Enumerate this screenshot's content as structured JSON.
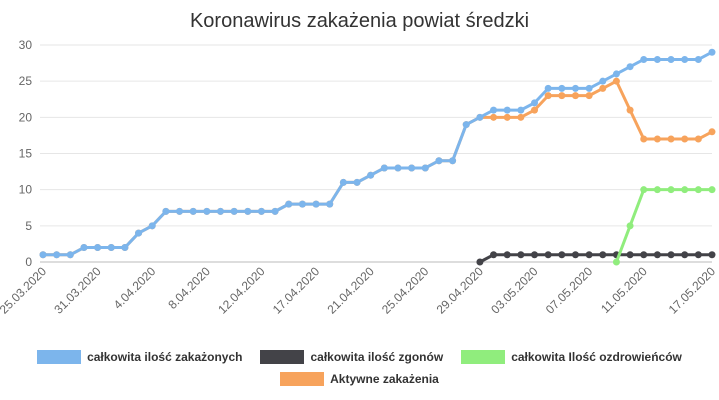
{
  "chart_data": {
    "type": "line",
    "title": "Koronawirus zakażenia powiat średzki",
    "xlabel": "",
    "ylabel": "",
    "ylim": [
      0,
      30
    ],
    "yticks": [
      0,
      5,
      10,
      15,
      20,
      25,
      30
    ],
    "grid": true,
    "legend_position": "bottom",
    "categories": [
      "25.03.2020",
      "",
      "",
      "",
      "31.03.2020",
      "",
      "",
      "",
      "4.04.2020",
      "",
      "",
      "",
      "8.04.2020",
      "",
      "",
      "",
      "12.04.2020",
      "",
      "",
      "",
      "17.04.2020",
      "",
      "",
      "",
      "21.04.2020",
      "",
      "",
      "",
      "25.04.2020",
      "",
      "",
      "",
      "29.04.2020",
      "",
      "",
      "",
      "03.05.2020",
      "",
      "",
      "",
      "07.05.2020",
      "",
      "",
      "",
      "11.05.2020",
      "",
      "",
      "",
      "",
      "17.05.2020"
    ],
    "series": [
      {
        "name": "całkowita ilość zakażonych",
        "color": "#7cb5ec",
        "values": [
          1,
          1,
          1,
          2,
          2,
          2,
          2,
          4,
          5,
          7,
          7,
          7,
          7,
          7,
          7,
          7,
          7,
          7,
          8,
          8,
          8,
          8,
          11,
          11,
          12,
          13,
          13,
          13,
          13,
          14,
          14,
          19,
          20,
          21,
          21,
          21,
          22,
          24,
          24,
          24,
          24,
          25,
          26,
          27,
          28,
          28,
          28,
          28,
          28,
          29
        ]
      },
      {
        "name": "całkowita ilość zgonów",
        "color": "#434348",
        "values": [
          null,
          null,
          null,
          null,
          null,
          null,
          null,
          null,
          null,
          null,
          null,
          null,
          null,
          null,
          null,
          null,
          null,
          null,
          null,
          null,
          null,
          null,
          null,
          null,
          null,
          null,
          null,
          null,
          null,
          null,
          null,
          null,
          0,
          1,
          1,
          1,
          1,
          1,
          1,
          1,
          1,
          1,
          1,
          1,
          1,
          1,
          1,
          1,
          1,
          1
        ]
      },
      {
        "name": "całkowita Ilość ozdrowieńców",
        "color": "#90ed7d",
        "values": [
          null,
          null,
          null,
          null,
          null,
          null,
          null,
          null,
          null,
          null,
          null,
          null,
          null,
          null,
          null,
          null,
          null,
          null,
          null,
          null,
          null,
          null,
          null,
          null,
          null,
          null,
          null,
          null,
          null,
          null,
          null,
          null,
          null,
          null,
          null,
          null,
          null,
          null,
          null,
          null,
          null,
          null,
          0,
          5,
          10,
          10,
          10,
          10,
          10,
          10
        ]
      },
      {
        "name": "Aktywne zakażenia",
        "color": "#f7a35c",
        "values": [
          1,
          1,
          1,
          2,
          2,
          2,
          2,
          4,
          5,
          7,
          7,
          7,
          7,
          7,
          7,
          7,
          7,
          7,
          8,
          8,
          8,
          8,
          11,
          11,
          12,
          13,
          13,
          13,
          13,
          14,
          14,
          19,
          20,
          20,
          20,
          20,
          21,
          23,
          23,
          23,
          23,
          24,
          25,
          21,
          17,
          17,
          17,
          17,
          17,
          18
        ]
      }
    ]
  }
}
